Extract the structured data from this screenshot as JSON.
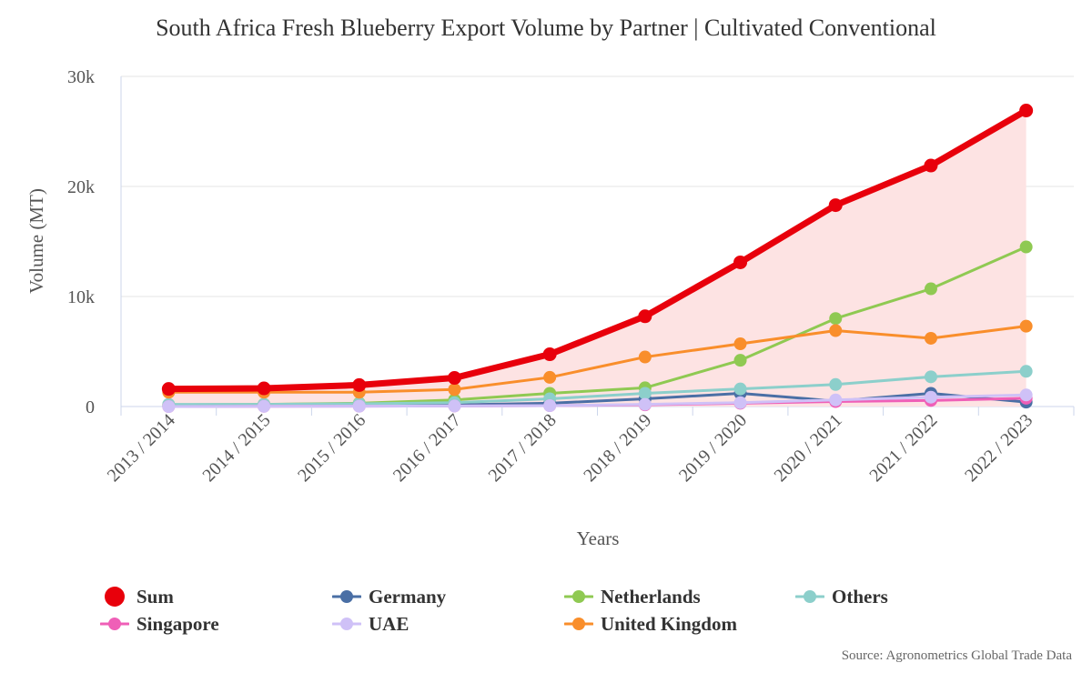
{
  "title": "South Africa Fresh Blueberry Export Volume by Partner | Cultivated Conventional",
  "source": "Source: Agronometrics Global Trade Data",
  "chart_data": {
    "type": "line",
    "title": "South Africa Fresh Blueberry Export Volume by Partner | Cultivated Conventional",
    "xlabel": "Years",
    "ylabel": "Volume (MT)",
    "ylim": [
      0,
      30000
    ],
    "yticks": [
      {
        "value": 0,
        "label": "0"
      },
      {
        "value": 10000,
        "label": "10k"
      },
      {
        "value": 20000,
        "label": "20k"
      },
      {
        "value": 30000,
        "label": "30k"
      }
    ],
    "grid": true,
    "legend_position": "bottom",
    "categories": [
      "2013 / 2014",
      "2014 / 2015",
      "2015 / 2016",
      "2016 / 2017",
      "2017 / 2018",
      "2018 / 2019",
      "2019 / 2020",
      "2020 / 2021",
      "2021 / 2022",
      "2022 / 2023"
    ],
    "series": [
      {
        "name": "Sum",
        "color": "#e8000b",
        "area_fill": "#fde3e3",
        "emphasis": true,
        "values": [
          1600,
          1650,
          1950,
          2600,
          4750,
          8200,
          13100,
          18300,
          21900,
          26900
        ]
      },
      {
        "name": "Germany",
        "color": "#4a6fa5",
        "values": [
          50,
          50,
          80,
          150,
          300,
          700,
          1200,
          500,
          1200,
          400
        ]
      },
      {
        "name": "Netherlands",
        "color": "#8fc952",
        "values": [
          150,
          200,
          300,
          600,
          1200,
          1700,
          4200,
          8000,
          10700,
          14500
        ]
      },
      {
        "name": "Others",
        "color": "#8ccfcb",
        "values": [
          200,
          200,
          250,
          350,
          700,
          1200,
          1600,
          2000,
          2700,
          3200
        ]
      },
      {
        "name": "Singapore",
        "color": "#ef5fb7",
        "values": [
          0,
          20,
          30,
          50,
          80,
          150,
          300,
          450,
          550,
          750
        ]
      },
      {
        "name": "UAE",
        "color": "#cfc1f7",
        "values": [
          0,
          20,
          30,
          50,
          80,
          200,
          350,
          600,
          850,
          1050
        ]
      },
      {
        "name": "United Kingdom",
        "color": "#f98e2b",
        "values": [
          1300,
          1300,
          1300,
          1550,
          2650,
          4500,
          5700,
          6900,
          6200,
          7300
        ]
      }
    ]
  }
}
